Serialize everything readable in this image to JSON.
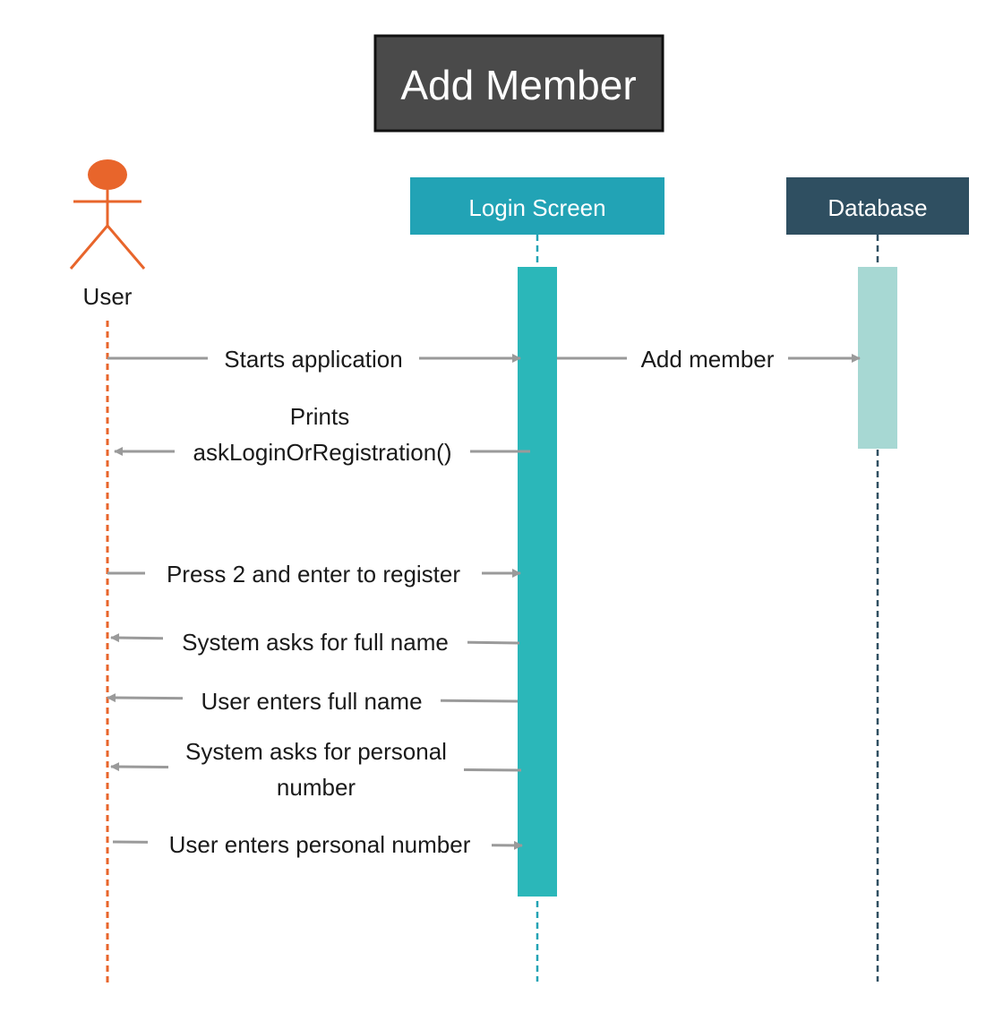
{
  "title": "Add Member",
  "actor": {
    "label": "User",
    "color": "#e8652b"
  },
  "participants": {
    "login": {
      "label": "Login Screen",
      "header_color": "#22a3b5",
      "activation_color": "#2bb7b9"
    },
    "database": {
      "label": "Database",
      "header_color": "#2f4f61",
      "activation_color": "#a7d8d3"
    }
  },
  "messages": [
    {
      "from": "User",
      "to": "Login Screen",
      "lines": [
        "Starts application"
      ]
    },
    {
      "from": "Login Screen",
      "to": "Database",
      "lines": [
        "Add member"
      ]
    },
    {
      "from": "Login Screen",
      "to": "User",
      "lines": [
        "Prints",
        "askLoginOrRegistration()"
      ]
    },
    {
      "from": "User",
      "to": "Login Screen",
      "lines": [
        "Press 2 and enter to register"
      ]
    },
    {
      "from": "Login Screen",
      "to": "User",
      "lines": [
        "System asks for full name"
      ]
    },
    {
      "from": "Login Screen",
      "to": "User",
      "lines": [
        "User enters full name"
      ]
    },
    {
      "from": "Login Screen",
      "to": "User",
      "lines": [
        "System asks for personal",
        "number"
      ]
    },
    {
      "from": "User",
      "to": "Login Screen",
      "lines": [
        "User enters personal number"
      ]
    }
  ],
  "colors": {
    "title_background": "#4a4a4a",
    "title_border": "#111111",
    "arrow": "#9a9a9a"
  }
}
